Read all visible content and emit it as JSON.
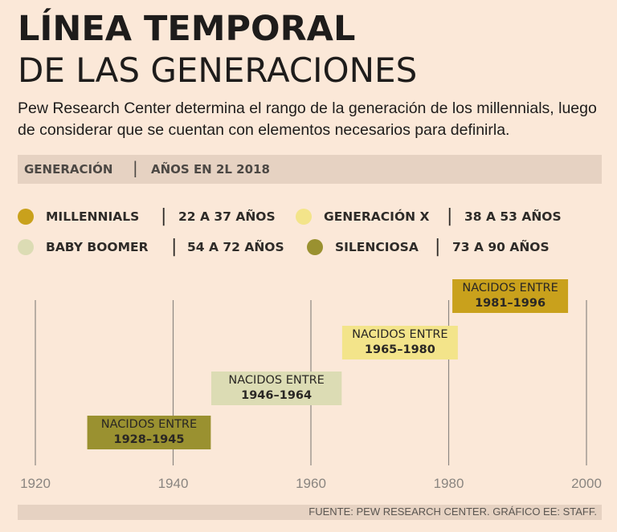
{
  "header": {
    "title_line1": "LÍNEA TEMPORAL",
    "title_line2": "DE LAS GENERACIONES",
    "subtitle": "Pew Research Center determina el rango de la generación de los millennials, luego de considerar que se cuentan con elementos necesarios para definirla."
  },
  "band": {
    "col1": "GENERACIÓN",
    "separator": "|",
    "col2": "AÑOS EN 2L 2018"
  },
  "legend": [
    {
      "name": "MILLENNIALS",
      "range": "22 A 37 AÑOS",
      "color": "#c9a11c"
    },
    {
      "name": "GENERACIÓN X",
      "range": "38 A 53 AÑOS",
      "color": "#f3e48a"
    },
    {
      "name": "BABY BOOMER",
      "range": "54 A 72 AÑOS",
      "color": "#dcdcb4"
    },
    {
      "name": "SILENCIOSA",
      "range": "73 A 90 AÑOS",
      "color": "#9a9130"
    }
  ],
  "chart_data": {
    "type": "timeline",
    "x_ticks": [
      1920,
      1940,
      1960,
      1980,
      2000
    ],
    "x_range": [
      1920,
      2000
    ],
    "ranges": [
      {
        "generation": "SILENCIOSA",
        "label": "NACIDOS ENTRE",
        "years": "1928–1945",
        "start": 1928,
        "end": 1945,
        "color": "#9a9130",
        "level": 0
      },
      {
        "generation": "BABY BOOMER",
        "label": "NACIDOS ENTRE",
        "years": "1946–1964",
        "start": 1946,
        "end": 1964,
        "color": "#dcdcb4",
        "level": 1
      },
      {
        "generation": "GENERACIÓN X",
        "label": "NACIDOS ENTRE",
        "years": "1965–1980",
        "start": 1965,
        "end": 1980,
        "color": "#f3e48a",
        "level": 2
      },
      {
        "generation": "MILLENNIALS",
        "label": "NACIDOS ENTRE",
        "years": "1981–1996",
        "start": 1981,
        "end": 1996,
        "color": "#c9a11c",
        "level": 3
      }
    ]
  },
  "footer": {
    "source": "FUENTE: PEW RESEARCH CENTER. GRÁFICO EE: STAFF."
  }
}
